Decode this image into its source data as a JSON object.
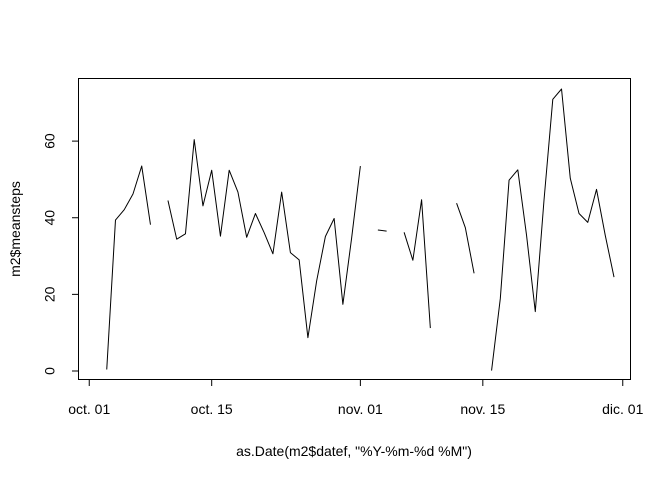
{
  "chart_data": {
    "type": "line",
    "title": "",
    "xlabel": "as.Date(m2$datef, \"%Y-%m-%d %M\")",
    "ylabel": "m2$meansteps",
    "grid": false,
    "legend": "none",
    "x_unit": "day (0 = oct. 01)",
    "xlim": [
      -1,
      62
    ],
    "ylim": [
      0,
      73.6
    ],
    "x_ticks": [
      {
        "value": 0,
        "label": "oct. 01"
      },
      {
        "value": 14,
        "label": "oct. 15"
      },
      {
        "value": 31,
        "label": "nov. 01"
      },
      {
        "value": 45,
        "label": "nov. 15"
      },
      {
        "value": 61,
        "label": "dic. 01"
      }
    ],
    "y_ticks": [
      {
        "value": 0,
        "label": "0"
      },
      {
        "value": 20,
        "label": "20"
      },
      {
        "value": 40,
        "label": "40"
      },
      {
        "value": 60,
        "label": "60"
      }
    ],
    "series": [
      {
        "name": "m2$meansteps",
        "color": "#000000",
        "x": [
          1,
          2,
          3,
          4,
          5,
          6,
          7,
          8,
          9,
          10,
          11,
          12,
          13,
          14,
          15,
          16,
          17,
          18,
          19,
          20,
          21,
          22,
          23,
          24,
          25,
          26,
          27,
          28,
          29,
          30,
          31,
          32,
          33,
          34,
          35,
          36,
          37,
          38,
          39,
          40,
          41,
          42,
          43,
          44,
          45,
          46,
          47,
          48,
          49,
          50,
          51,
          52,
          53,
          54,
          55,
          56,
          57,
          58,
          59,
          60
        ],
        "values": [
          null,
          0.4,
          39.4,
          42.1,
          46.2,
          53.5,
          38.2,
          null,
          44.5,
          34.4,
          35.8,
          60.4,
          43.1,
          52.4,
          35.2,
          52.4,
          46.7,
          34.9,
          41.1,
          36.1,
          30.6,
          46.7,
          30.9,
          29.0,
          8.7,
          23.5,
          35.1,
          39.8,
          17.4,
          34.7,
          53.5,
          null,
          36.8,
          36.5,
          null,
          36.2,
          28.9,
          44.7,
          11.2,
          null,
          null,
          43.8,
          37.4,
          25.5,
          null,
          0.1,
          18.9,
          49.8,
          52.5,
          35.4,
          15.5,
          44.7,
          70.9,
          73.6,
          50.3,
          41.1,
          38.8,
          47.4,
          35.4,
          24.5
        ]
      }
    ]
  }
}
